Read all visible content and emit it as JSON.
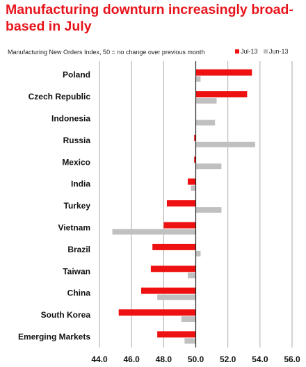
{
  "title": "Manufacturing downturn increasingly broad-based in July",
  "subtitle": "Manufacturing New Orders Index, 50 = no change over previous month",
  "colors": {
    "jul": "#ee1111",
    "jun": "#c0c0c0",
    "grid": "#aaaaaa"
  },
  "chart_data": {
    "type": "bar",
    "orientation": "horizontal",
    "categories": [
      "Poland",
      "Czech Republic",
      "Indonesia",
      "Russia",
      "Mexico",
      "India",
      "Turkey",
      "Vietnam",
      "Brazil",
      "Taiwan",
      "China",
      "South Korea",
      "Emerging Markets"
    ],
    "series": [
      {
        "name": "Jul-13",
        "values": [
          53.5,
          53.2,
          null,
          49.9,
          49.9,
          49.5,
          48.2,
          48.0,
          47.3,
          47.2,
          46.6,
          45.2,
          47.6
        ]
      },
      {
        "name": "Jun-13",
        "values": [
          50.3,
          51.3,
          51.2,
          53.7,
          51.6,
          49.7,
          51.6,
          44.8,
          50.3,
          49.5,
          47.6,
          49.1,
          49.3
        ]
      }
    ],
    "xlim": [
      44.0,
      56.0
    ],
    "ticks": [
      "44.0",
      "46.0",
      "48.0",
      "50.0",
      "52.0",
      "54.0",
      "56.0"
    ],
    "baseline": 50.0,
    "grid": true,
    "legend_position": "top-right"
  }
}
